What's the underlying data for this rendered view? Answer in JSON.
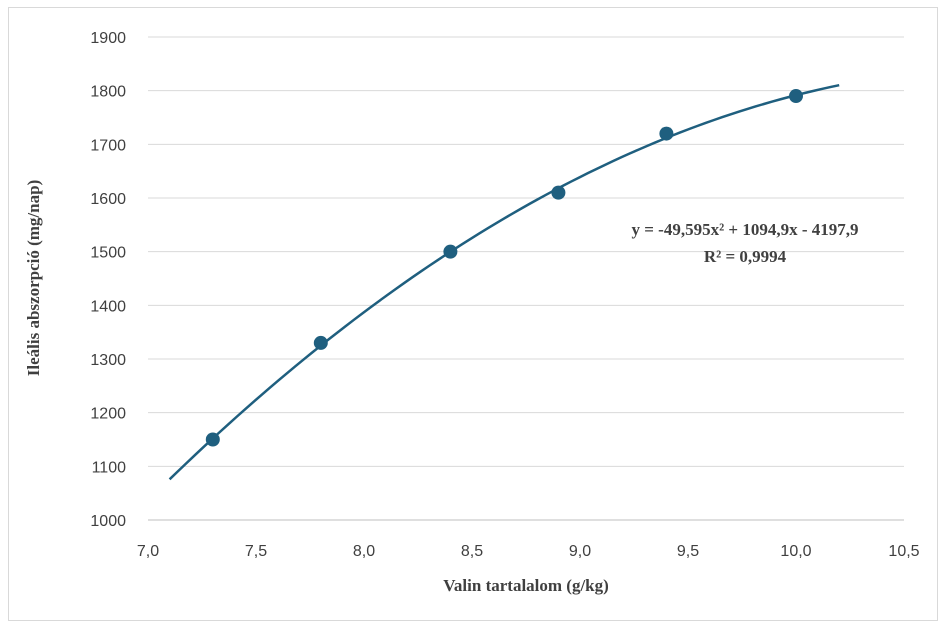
{
  "chart_data": {
    "type": "scatter",
    "xlabel": "Valin tartalalom (g/kg)",
    "ylabel": "Ileális abszorpció (mg/nap)",
    "xlim": [
      7.0,
      10.5
    ],
    "ylim": [
      1000,
      1900
    ],
    "x_ticks": [
      "7,0",
      "7,5",
      "8,0",
      "8,5",
      "9,0",
      "9,5",
      "10,0",
      "10,5"
    ],
    "y_ticks": [
      "1000",
      "1100",
      "1200",
      "1300",
      "1400",
      "1500",
      "1600",
      "1700",
      "1800",
      "1900"
    ],
    "grid": "horizontal",
    "series": [
      {
        "x": [
          7.3,
          7.8,
          8.4,
          8.9,
          9.4,
          10.0
        ],
        "y": [
          1150,
          1330,
          1500,
          1610,
          1720,
          1790
        ],
        "color": "#1f5f7f"
      }
    ],
    "trendline": {
      "type": "polynomial",
      "degree": 2,
      "coefficients": [
        -49.595,
        1094.9,
        -4197.9
      ],
      "x_range": [
        7.1,
        10.2
      ],
      "color": "#1f5f7f"
    },
    "annotations": {
      "equation": "y = -49,595x² + 1094,9x - 4197,9",
      "r_squared": "R² = 0,9994"
    }
  }
}
